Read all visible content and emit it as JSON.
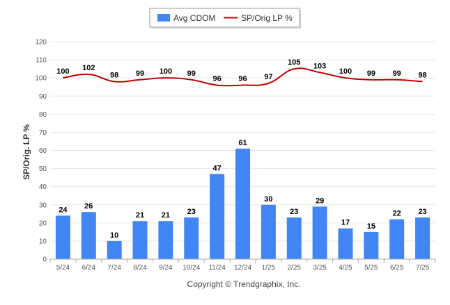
{
  "chart_data": {
    "type": "bar",
    "title": "",
    "xlabel": "",
    "ylabel": "SP/Orig. LP %",
    "ylim": [
      0,
      120
    ],
    "yticks": [
      0,
      10,
      20,
      30,
      40,
      50,
      60,
      70,
      80,
      90,
      100,
      110,
      120
    ],
    "grid": true,
    "legend_position": "top-center",
    "categories": [
      "5/24",
      "6/24",
      "7/24",
      "8/24",
      "9/24",
      "10/24",
      "11/24",
      "12/24",
      "1/25",
      "2/25",
      "3/25",
      "4/25",
      "5/25",
      "6/25",
      "7/25"
    ],
    "series": [
      {
        "name": "Avg CDOM",
        "type": "bar",
        "color": "#4285f4",
        "values": [
          24,
          26,
          10,
          21,
          21,
          23,
          47,
          61,
          30,
          23,
          29,
          17,
          15,
          22,
          23
        ]
      },
      {
        "name": "SP/Orig LP %",
        "type": "line",
        "color": "#c00000",
        "values": [
          100,
          102,
          98,
          99,
          100,
          99,
          96,
          96,
          97,
          105,
          103,
          100,
          99,
          99,
          98
        ]
      }
    ]
  },
  "footer": {
    "copyright": "Copyright © Trendgraphix, Inc."
  }
}
